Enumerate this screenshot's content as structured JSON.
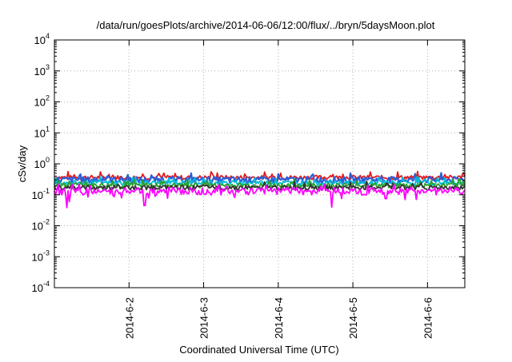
{
  "chart_data": {
    "type": "line",
    "title": "/data/run/goesPlots/archive/2014-06-06/12:00/flux/../bryn/5daysMoon.plot",
    "xlabel": "Coordinated Universal Time (UTC)",
    "ylabel": "cSv/day",
    "yscale": "log",
    "ylim": [
      0.0001,
      10000
    ],
    "xlim": [
      1.0,
      6.5
    ],
    "grid": true,
    "x_ticks": [
      {
        "value": 2,
        "label": "2014-6-2"
      },
      {
        "value": 3,
        "label": "2014-6-3"
      },
      {
        "value": 4,
        "label": "2014-6-4"
      },
      {
        "value": 5,
        "label": "2014-6-5"
      },
      {
        "value": 6,
        "label": "2014-6-6"
      }
    ],
    "y_ticks": [
      {
        "value": 0.0001,
        "base": "10",
        "exp": "-4"
      },
      {
        "value": 0.001,
        "base": "10",
        "exp": "-3"
      },
      {
        "value": 0.01,
        "base": "10",
        "exp": "-2"
      },
      {
        "value": 0.1,
        "base": "10",
        "exp": "-1"
      },
      {
        "value": 1,
        "base": "10",
        "exp": "0"
      },
      {
        "value": 10,
        "base": "10",
        "exp": "1"
      },
      {
        "value": 100,
        "base": "10",
        "exp": "2"
      },
      {
        "value": 1000,
        "base": "10",
        "exp": "3"
      },
      {
        "value": 10000,
        "base": "10",
        "exp": "4"
      }
    ],
    "series": [
      {
        "color": "#e41a1c",
        "base": 0.36,
        "amp": 0.16,
        "dip": false
      },
      {
        "color": "#2b5fd9",
        "base": 0.3,
        "amp": 0.2,
        "dip": false
      },
      {
        "color": "#00bcd4",
        "base": 0.24,
        "amp": 0.12,
        "dip": false
      },
      {
        "color": "#2ca02c",
        "base": 0.2,
        "amp": 0.1,
        "dip": false
      },
      {
        "color": "#333333",
        "base": 0.17,
        "amp": 0.08,
        "dip": false
      },
      {
        "color": "#ff00ff",
        "base": 0.13,
        "amp": 0.1,
        "dip": true
      }
    ],
    "dips": [
      {
        "x": 1.16,
        "y": 0.055
      },
      {
        "x": 1.2,
        "y": 0.06
      },
      {
        "x": 2.21,
        "y": 0.045
      },
      {
        "x": 4.72,
        "y": 0.04
      },
      {
        "x": 5.44,
        "y": 0.075
      }
    ]
  }
}
